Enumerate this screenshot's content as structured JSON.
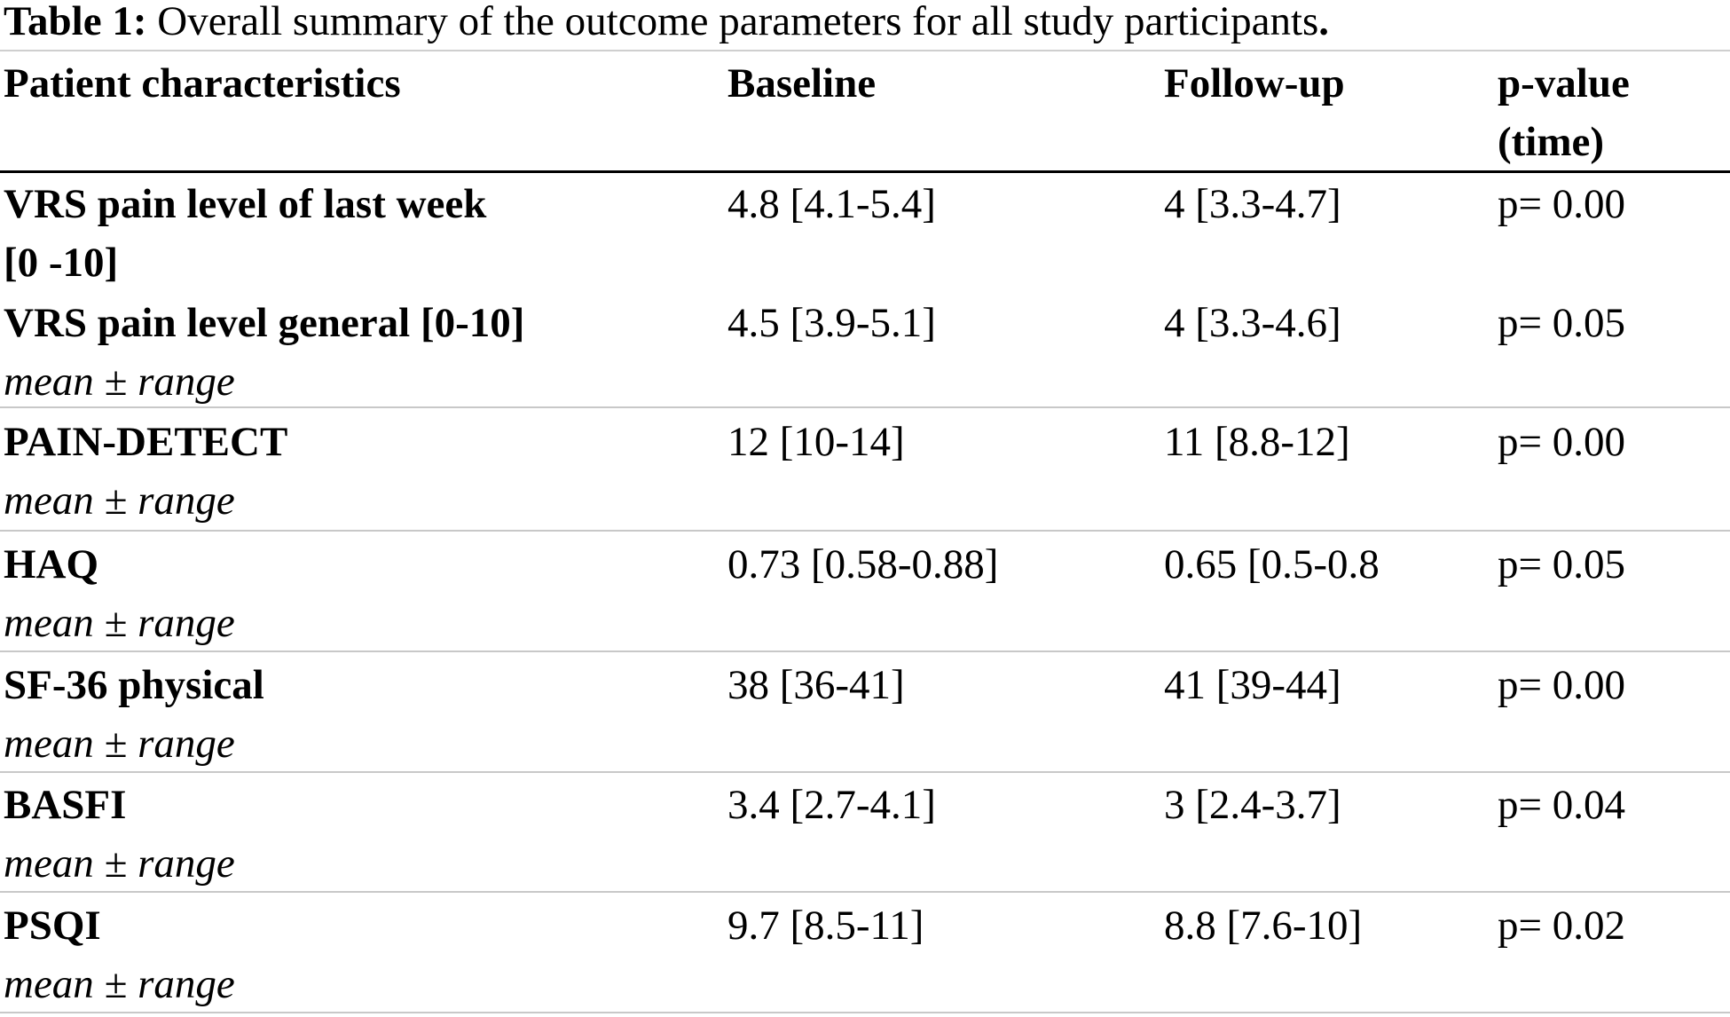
{
  "caption": {
    "label": "Table 1:",
    "text": " Overall summary of the outcome parameters for all study participants",
    "end": "."
  },
  "headers": {
    "col1": "Patient characteristics",
    "col2": "Baseline",
    "col3": "Follow-up",
    "col4_line1": "p-value",
    "col4_line2": "(time)"
  },
  "rows": [
    {
      "label_line1": "VRS pain level of last week",
      "label_line2": "[0 -10]",
      "baseline": "4.8 [4.1-5.4]",
      "followup": "4 [3.3-4.7]",
      "p": "p= 0.00"
    },
    {
      "label": "VRS pain level general [0-10]",
      "sub": "mean ± range",
      "baseline": "4.5 [3.9-5.1]",
      "followup": "4 [3.3-4.6]",
      "p": "p= 0.05"
    },
    {
      "label": "PAIN-DETECT",
      "sub": "mean ± range",
      "baseline": "12 [10-14]",
      "followup": "11 [8.8-12]",
      "p": "p= 0.00"
    },
    {
      "label": "HAQ",
      "sub": "mean ± range",
      "baseline": "0.73 [0.58-0.88]",
      "followup": " 0.65 [0.5-0.8",
      "p": "p= 0.05"
    },
    {
      "label": "SF-36 physical",
      "sub": "mean ± range",
      "baseline": "38 [36-41]",
      "followup": "41 [39-44]",
      "p": "p= 0.00"
    },
    {
      "label": "BASFI",
      "sub": "mean ± range",
      "baseline": " 3.4 [2.7-4.1]",
      "followup": "3 [2.4-3.7]",
      "p": "p= 0.04"
    },
    {
      "label": "PSQI",
      "sub": "mean ± range",
      "baseline": "9.7 [8.5-11]",
      "followup": "8.8 [7.6-10]",
      "p": "p= 0.02"
    }
  ]
}
